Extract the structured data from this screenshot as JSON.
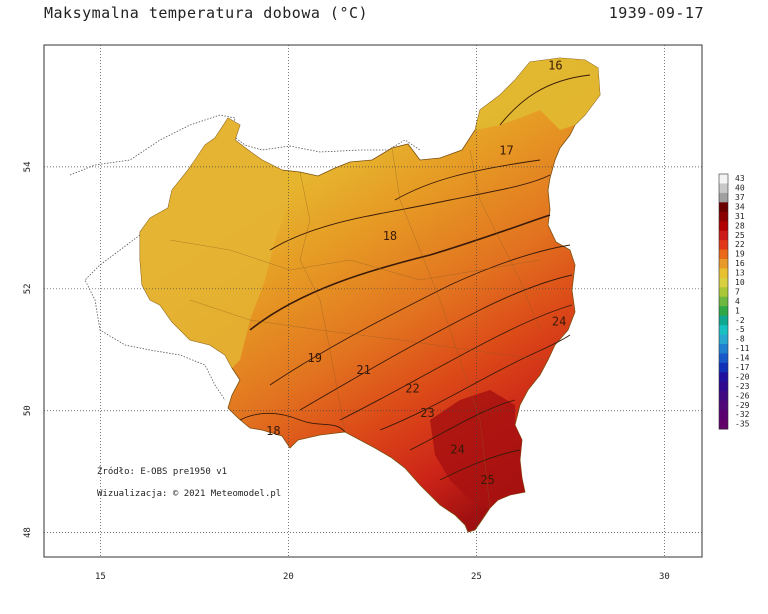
{
  "header": {
    "title": "Maksymalna temperatura dobowa (°C)",
    "date": "1939-09-17"
  },
  "axes": {
    "x_ticks": [
      15,
      20,
      25,
      30
    ],
    "y_ticks": [
      48,
      50,
      52,
      54
    ],
    "x_range": [
      13.5,
      31.0
    ],
    "y_range": [
      47.6,
      56.0
    ]
  },
  "contour_labels": [
    {
      "text": "16",
      "lon": 27.1,
      "lat": 55.6
    },
    {
      "text": "17",
      "lon": 25.8,
      "lat": 54.2
    },
    {
      "text": "18",
      "lon": 22.7,
      "lat": 52.8
    },
    {
      "text": "19",
      "lon": 20.7,
      "lat": 50.8
    },
    {
      "text": "18",
      "lon": 19.6,
      "lat": 49.6
    },
    {
      "text": "21",
      "lon": 22.0,
      "lat": 50.6
    },
    {
      "text": "22",
      "lon": 23.3,
      "lat": 50.3
    },
    {
      "text": "23",
      "lon": 23.7,
      "lat": 49.9
    },
    {
      "text": "24",
      "lon": 24.5,
      "lat": 49.3
    },
    {
      "text": "25",
      "lon": 25.3,
      "lat": 48.8
    },
    {
      "text": "24",
      "lon": 27.2,
      "lat": 51.4
    }
  ],
  "annotations": {
    "source": "Źródło: E-OBS pre1950 v1",
    "credit": "Wizualizacja: © 2021 Meteomodel.pl"
  },
  "colorbar": {
    "labels": [
      "43",
      "40",
      "37",
      "34",
      "31",
      "28",
      "25",
      "22",
      "19",
      "16",
      "13",
      "10",
      "7",
      "4",
      "1",
      "-2",
      "-5",
      "-8",
      "-11",
      "-14",
      "-17",
      "-20",
      "-23",
      "-26",
      "-29",
      "-32",
      "-35"
    ],
    "colors": [
      "#f4f4f4",
      "#c8c8c8",
      "#a0a0a0",
      "#6a0000",
      "#8b0000",
      "#b00000",
      "#cc1a1a",
      "#e03818",
      "#e86a1a",
      "#e89a2a",
      "#e8c030",
      "#d8d040",
      "#a8c838",
      "#6cb840",
      "#30a848",
      "#10a890",
      "#18c0c0",
      "#28a8d0",
      "#2080d0",
      "#1858c8",
      "#1030b8",
      "#2010a0",
      "#300890",
      "#400880",
      "#500878",
      "#5a0070",
      "#600068"
    ]
  },
  "colors": {
    "ne_cool": "#e0c030",
    "north": "#e8a028",
    "central": "#e07a20",
    "south": "#dc4a18",
    "southeast": "#c82818",
    "deep": "#9a1010"
  }
}
